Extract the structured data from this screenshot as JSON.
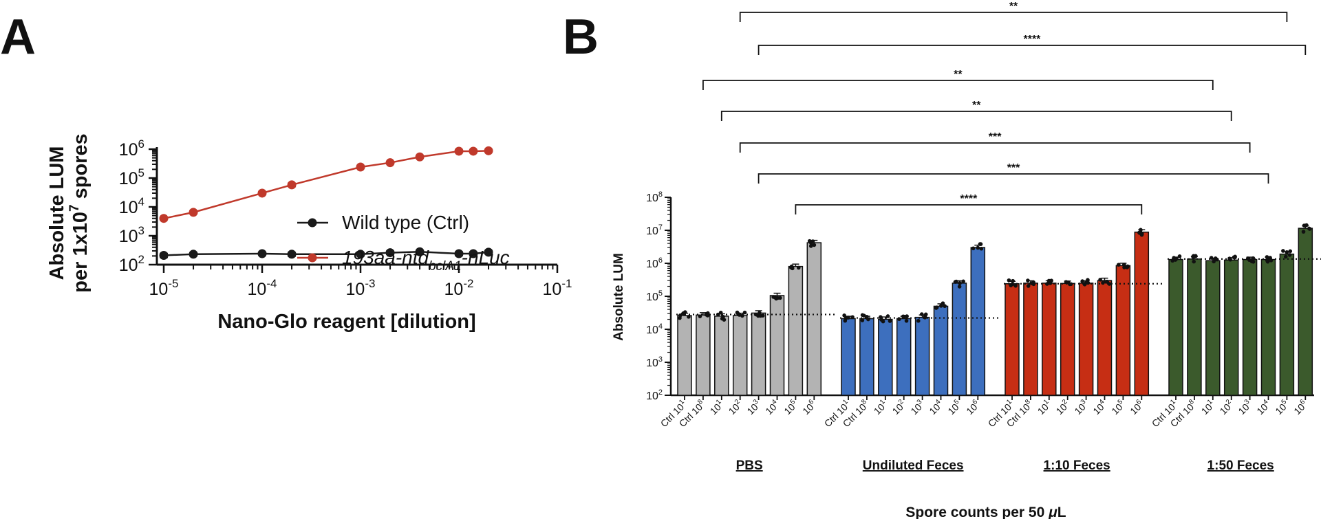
{
  "panels": {
    "a_label": "A",
    "b_label": "B"
  },
  "chart_data": [
    {
      "type": "line",
      "panel": "A",
      "xlabel": "Nano-Glo reagent [dilution]",
      "ylabel": {
        "line1": "Absolute LUM",
        "line2_prefix": "per 1x10",
        "line2_sup": "7",
        "line2_suffix": " spores"
      },
      "x_scale": "log",
      "y_scale": "log",
      "xlim": [
        1e-05,
        0.1
      ],
      "ylim": [
        100,
        1000000
      ],
      "x_ticks": [
        {
          "base": "10",
          "exp": "-5",
          "value": 1e-05
        },
        {
          "base": "10",
          "exp": "-4",
          "value": 0.0001
        },
        {
          "base": "10",
          "exp": "-3",
          "value": 0.001
        },
        {
          "base": "10",
          "exp": "-2",
          "value": 0.01
        },
        {
          "base": "10",
          "exp": "-1",
          "value": 0.1
        }
      ],
      "y_ticks": [
        {
          "base": "10",
          "exp": "2",
          "value": 100
        },
        {
          "base": "10",
          "exp": "3",
          "value": 1000
        },
        {
          "base": "10",
          "exp": "4",
          "value": 10000
        },
        {
          "base": "10",
          "exp": "5",
          "value": 100000
        },
        {
          "base": "10",
          "exp": "6",
          "value": 1000000
        }
      ],
      "legend_position": "center-right",
      "x": [
        1e-05,
        2e-05,
        0.0001,
        0.0002,
        0.001,
        0.002,
        0.004,
        0.01,
        0.014,
        0.02
      ],
      "series": [
        {
          "name": "Wild type (Ctrl)",
          "color": "#1a1a1a",
          "values": [
            210,
            230,
            240,
            230,
            230,
            260,
            280,
            240,
            240,
            270
          ],
          "errors": [
            30,
            25,
            20,
            30,
            25,
            30,
            25,
            30,
            30,
            30
          ]
        },
        {
          "name": "193aa-ntd",
          "name_sub": "bclA1",
          "name_suffix": "-nLuc",
          "color": "#c0392b",
          "values": [
            4000,
            6500,
            30000,
            58000,
            240000,
            340000,
            540000,
            850000,
            850000,
            880000
          ],
          "errors": [
            300,
            500,
            2000,
            7000,
            15000,
            20000,
            30000,
            40000,
            40000,
            40000
          ]
        }
      ]
    },
    {
      "type": "bar",
      "panel": "B",
      "ylabel": "Absolute LUM",
      "xlabel": {
        "prefix": "Spore counts per 50 ",
        "mu": "μ",
        "suffix": "L"
      },
      "y_scale": "log",
      "ylim": [
        100,
        100000000
      ],
      "y_ticks": [
        {
          "base": "10",
          "exp": "2",
          "value": 100
        },
        {
          "base": "10",
          "exp": "3",
          "value": 1000
        },
        {
          "base": "10",
          "exp": "4",
          "value": 10000
        },
        {
          "base": "10",
          "exp": "5",
          "value": 100000
        },
        {
          "base": "10",
          "exp": "6",
          "value": 1000000
        },
        {
          "base": "10",
          "exp": "7",
          "value": 10000000
        },
        {
          "base": "10",
          "exp": "8",
          "value": 100000000
        }
      ],
      "category_labels": [
        {
          "pre": "Ctrl 10",
          "sup": "1"
        },
        {
          "pre": "Ctrl 10",
          "sup": "8"
        },
        {
          "pre": "10",
          "sup": "1"
        },
        {
          "pre": "10",
          "sup": "2"
        },
        {
          "pre": "10",
          "sup": "3"
        },
        {
          "pre": "10",
          "sup": "4"
        },
        {
          "pre": "10",
          "sup": "5"
        },
        {
          "pre": "10",
          "sup": "6"
        }
      ],
      "groups": [
        {
          "name": "PBS",
          "color": "#b3b3b3",
          "values": [
            26000,
            27000,
            25000,
            26000,
            31000,
            105000,
            800000,
            4200000
          ],
          "baseline": 28000
        },
        {
          "name": "Undiluted Feces",
          "color": "#3d6fbe",
          "values": [
            21000,
            21000,
            20000,
            21000,
            23000,
            50000,
            250000,
            3000000
          ],
          "baseline": 22000
        },
        {
          "name": "1:10 Feces",
          "color": "#c62e14",
          "values": [
            240000,
            250000,
            250000,
            245000,
            250000,
            300000,
            850000,
            8800000
          ],
          "baseline": 240000
        },
        {
          "name": "1:50 Feces",
          "color": "#3b5a2c",
          "values": [
            1300000,
            1350000,
            1200000,
            1250000,
            1300000,
            1300000,
            1900000,
            11500000
          ],
          "baseline": 1350000
        }
      ],
      "significance": [
        {
          "from_group": 0,
          "from_bar": 3,
          "to_group": 3,
          "to_bar": 6,
          "label": "**"
        },
        {
          "from_group": 0,
          "from_bar": 4,
          "to_group": 3,
          "to_bar": 7,
          "label": "****"
        },
        {
          "from_group": 0,
          "from_bar": 1,
          "to_group": 3,
          "to_bar": 2,
          "label": "**"
        },
        {
          "from_group": 0,
          "from_bar": 2,
          "to_group": 3,
          "to_bar": 3,
          "label": "**"
        },
        {
          "from_group": 0,
          "from_bar": 3,
          "to_group": 3,
          "to_bar": 4,
          "label": "***"
        },
        {
          "from_group": 0,
          "from_bar": 4,
          "to_group": 3,
          "to_bar": 5,
          "label": "***"
        },
        {
          "from_group": 0,
          "from_bar": 6,
          "to_group": 2,
          "to_bar": 7,
          "label": "****"
        }
      ]
    }
  ]
}
